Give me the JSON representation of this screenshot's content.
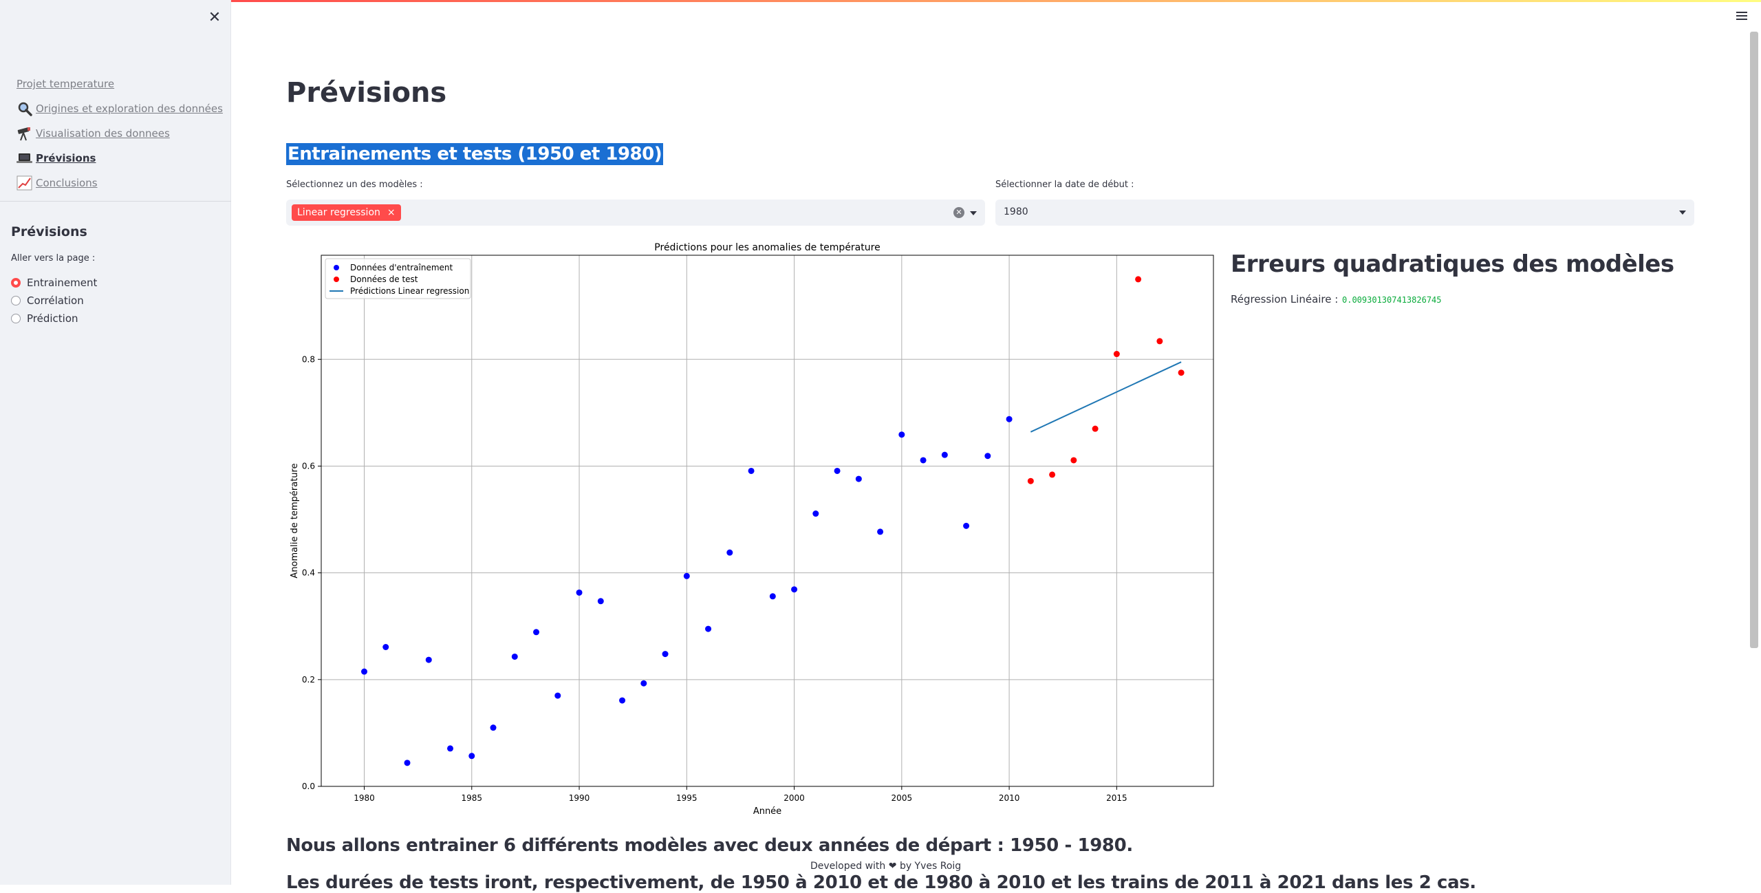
{
  "sidebar": {
    "nav": [
      {
        "label": "Projet temperature",
        "icon": ""
      },
      {
        "label": "Origines et exploration des données",
        "icon": "magnifier-icon"
      },
      {
        "label": "Visualisation des donnees",
        "icon": "telescope-icon"
      },
      {
        "label": "Prévisions",
        "icon": "laptop-icon"
      },
      {
        "label": "Conclusions",
        "icon": "chart-increasing-icon"
      }
    ],
    "title": "Prévisions",
    "radio_label": "Aller vers la page :",
    "radios": [
      "Entrainement",
      "Corrélation",
      "Prédiction"
    ],
    "selected_radio": "Entrainement"
  },
  "main": {
    "page_title": "Prévisions",
    "section_title": "Entrainements et tests (1950 et 1980)",
    "model_label": "Sélectionnez un des modèles :",
    "model_tag": "Linear regression",
    "tag_close": "×",
    "date_label": "Sélectionner la date de début :",
    "date_value": "1980",
    "errors_title": "Erreurs quadratiques des modèles",
    "error_label": "Régression Linéaire :",
    "error_value": "0.009301307413826745",
    "para1": "Nous allons entrainer 6 différents modèles avec deux années de départ : 1950 - 1980.",
    "para2": "Les durées de tests iront, respectivement, de 1950 à 2010 et de 1980 à 2010 et les trains de 2011 à 2021 dans les 2 cas."
  },
  "footer": {
    "before": "Developed with",
    "after": "by Yves Roig"
  },
  "colors": {
    "accent": "#ff4b4b",
    "train": "#0000ff",
    "test": "#ff0000",
    "line": "#1f77b4",
    "success": "#09ab3b"
  },
  "chart_data": {
    "type": "scatter",
    "title": "Prédictions pour les anomalies de température",
    "xlabel": "Année",
    "ylabel": "Anomalie de température",
    "xlim": [
      1978,
      2019.5
    ],
    "ylim": [
      0.0,
      0.995
    ],
    "xticks": [
      1980,
      1985,
      1990,
      1995,
      2000,
      2005,
      2010,
      2015
    ],
    "yticks": [
      0.0,
      0.2,
      0.4,
      0.6,
      0.8
    ],
    "grid": true,
    "legend": "top-left",
    "series": [
      {
        "name": "Données d'entraînement",
        "kind": "scatter",
        "color": "#0000ff",
        "x": [
          1980,
          1981,
          1982,
          1983,
          1984,
          1985,
          1986,
          1987,
          1988,
          1989,
          1990,
          1991,
          1992,
          1993,
          1994,
          1995,
          1996,
          1997,
          1998,
          1999,
          2000,
          2001,
          2002,
          2003,
          2004,
          2005,
          2006,
          2007,
          2008,
          2009,
          2010
        ],
        "y": [
          0.215,
          0.261,
          0.044,
          0.237,
          0.071,
          0.057,
          0.11,
          0.243,
          0.289,
          0.17,
          0.363,
          0.347,
          0.161,
          0.193,
          0.248,
          0.394,
          0.295,
          0.438,
          0.591,
          0.356,
          0.369,
          0.511,
          0.591,
          0.576,
          0.477,
          0.659,
          0.611,
          0.621,
          0.488,
          0.619,
          0.688
        ]
      },
      {
        "name": "Données de test",
        "kind": "scatter",
        "color": "#ff0000",
        "x": [
          2011,
          2012,
          2013,
          2014,
          2015,
          2016,
          2017,
          2018
        ],
        "y": [
          0.572,
          0.584,
          0.611,
          0.67,
          0.81,
          0.95,
          0.834,
          0.775
        ]
      },
      {
        "name": "Prédictions Linear regression",
        "kind": "line",
        "color": "#1f77b4",
        "x": [
          2011,
          2018
        ],
        "y": [
          0.664,
          0.795
        ]
      }
    ]
  }
}
